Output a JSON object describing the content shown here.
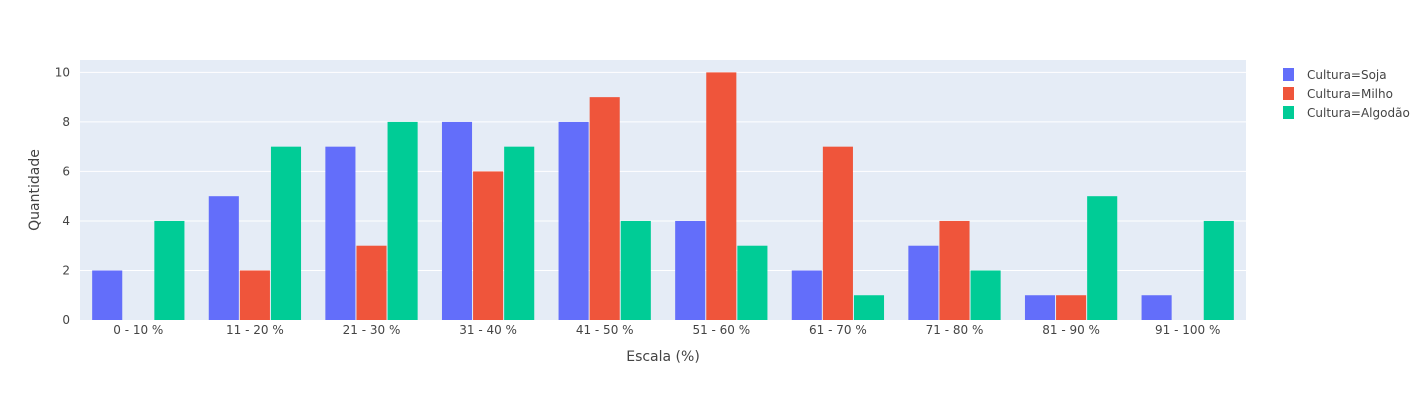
{
  "chart_data": {
    "type": "bar",
    "barmode": "group",
    "xlabel": "Escala (%)",
    "ylabel": "Quantidade",
    "ylim": [
      0,
      10.5
    ],
    "yticks": [
      0,
      2,
      4,
      6,
      8,
      10
    ],
    "grid": true,
    "legend_position": "top-right",
    "categories": [
      "0 - 10 %",
      "11 - 20 %",
      "21 - 30 %",
      "31 - 40 %",
      "41 - 50 %",
      "51 - 60 %",
      "61 - 70 %",
      "71 - 80 %",
      "81 - 90 %",
      "91 - 100 %"
    ],
    "series": [
      {
        "name": "Cultura=Soja",
        "color": "#636efa",
        "values": [
          2,
          5,
          7,
          8,
          8,
          4,
          2,
          3,
          1,
          1
        ]
      },
      {
        "name": "Cultura=Milho",
        "color": "#ef553b",
        "values": [
          0,
          2,
          3,
          6,
          9,
          10,
          7,
          4,
          1,
          0
        ]
      },
      {
        "name": "Cultura=Algodão",
        "color": "#00cc96",
        "values": [
          4,
          7,
          8,
          7,
          4,
          3,
          1,
          2,
          5,
          4
        ]
      }
    ],
    "plot_background": "#e5ecf6",
    "grid_color": "#ffffff"
  }
}
